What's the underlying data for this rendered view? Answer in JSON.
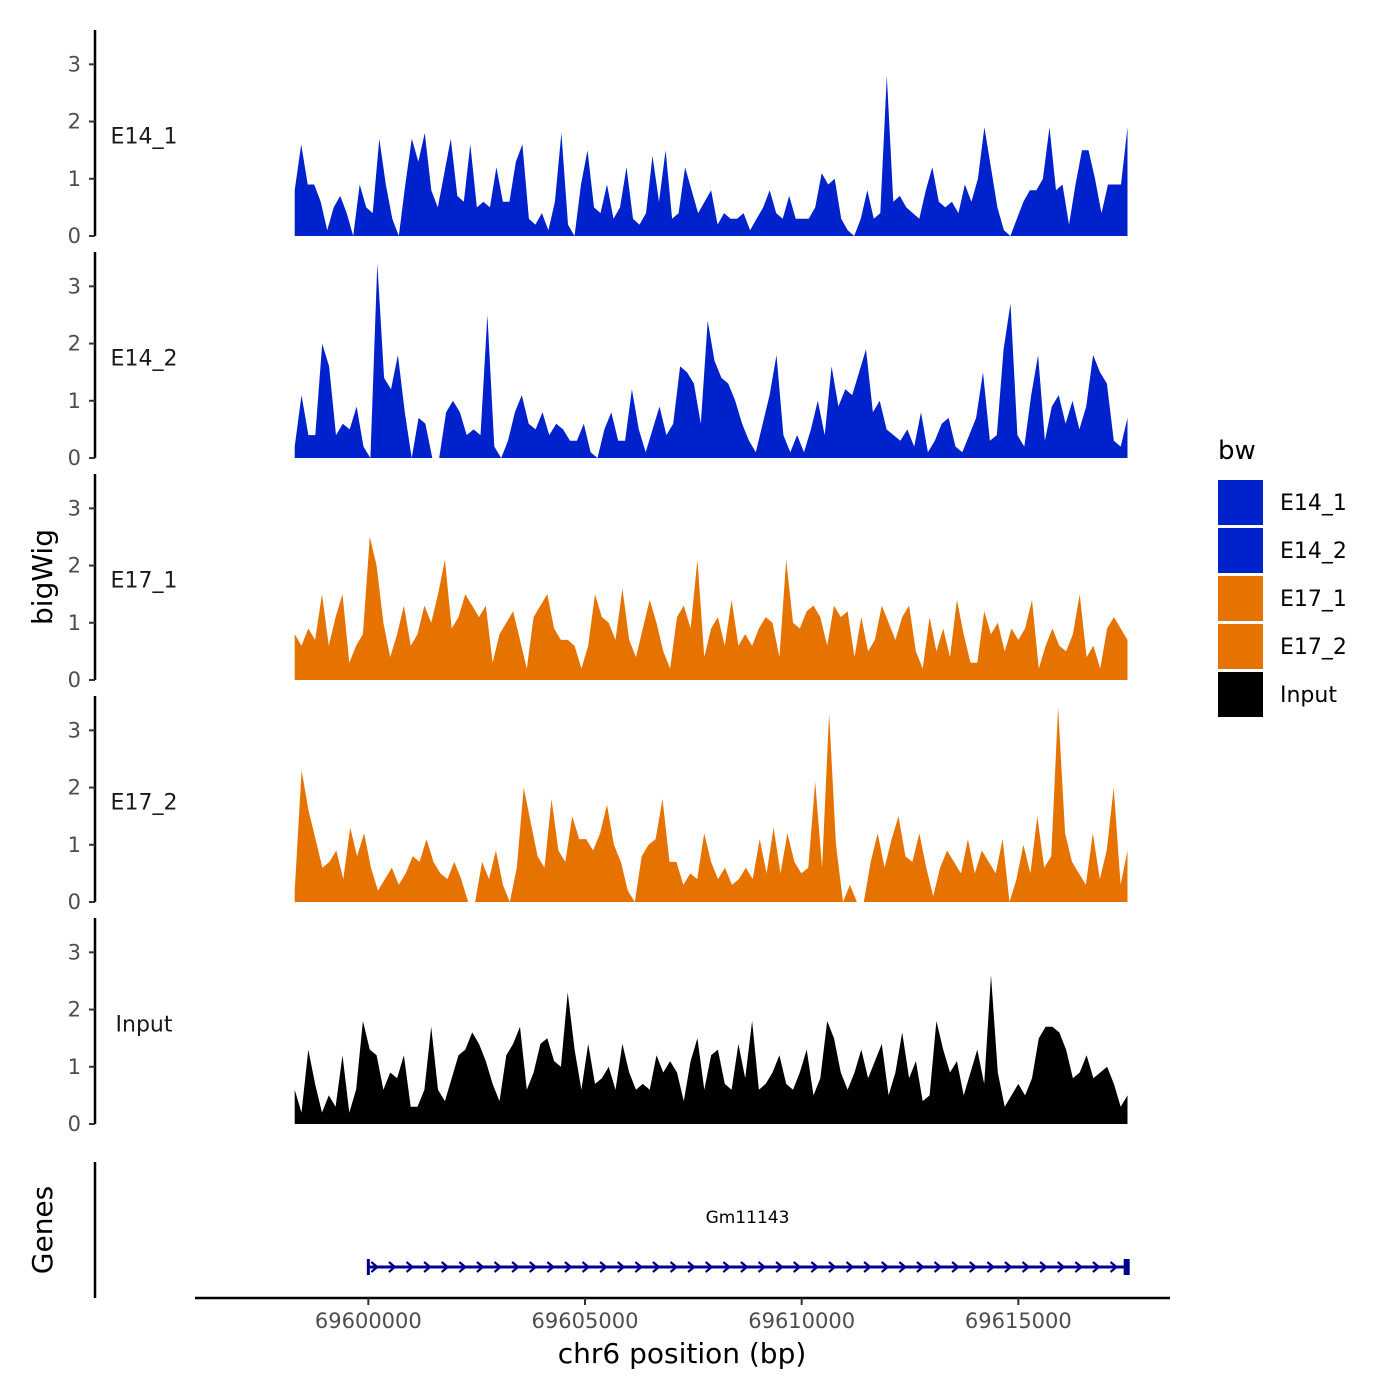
{
  "chart_data": {
    "type": "area",
    "chromosome": "chr6",
    "xlabel": "chr6 position (bp)",
    "ylabel": "bigWig",
    "genes_label": "Genes",
    "xlim": [
      69596000,
      69618500
    ],
    "x_ticks": [
      69600000,
      69605000,
      69610000,
      69615000
    ],
    "x_tick_labels": [
      "69600000",
      "69605000",
      "69610000",
      "69615000"
    ],
    "ylim": [
      0,
      3.6
    ],
    "y_ticks": [
      0,
      1,
      2,
      3
    ],
    "y_tick_labels": [
      "0",
      "1",
      "2",
      "3"
    ],
    "legend": {
      "title": "bw",
      "entries": [
        {
          "name": "E14_1",
          "color": "#0022CC"
        },
        {
          "name": "E14_2",
          "color": "#0022CC"
        },
        {
          "name": "E17_1",
          "color": "#E67300"
        },
        {
          "name": "E17_2",
          "color": "#E67300"
        },
        {
          "name": "Input",
          "color": "#000000"
        }
      ]
    },
    "series": [
      {
        "name": "E14_1",
        "color": "#0022CC",
        "x_start": 69598300,
        "x_end": 69617520,
        "step": 200,
        "values": [
          0.8,
          1.6,
          0.9,
          0.9,
          0.6,
          0.1,
          0.5,
          0.7,
          0.4,
          0,
          0.9,
          0.5,
          0.4,
          1.7,
          0.9,
          0.3,
          0,
          0.9,
          1.7,
          1.3,
          1.8,
          0.8,
          0.5,
          1.1,
          1.7,
          0.7,
          0.6,
          1.6,
          0.5,
          0.6,
          0.5,
          1.2,
          0.6,
          0.6,
          1.3,
          1.6,
          0.3,
          0.2,
          0.4,
          0.1,
          0.6,
          1.8,
          0.2,
          0,
          0.9,
          1.5,
          0.5,
          0.4,
          0.9,
          0.3,
          0.5,
          1.2,
          0.3,
          0.2,
          0.4,
          1.4,
          0.6,
          1.5,
          0.3,
          0.4,
          1.2,
          0.8,
          0.4,
          0.6,
          0.8,
          0.2,
          0.4,
          0.3,
          0.3,
          0.4,
          0.1,
          0.3,
          0.5,
          0.8,
          0.4,
          0.3,
          0.7,
          0.3,
          0.3,
          0.3,
          0.5,
          1.1,
          0.9,
          1.0,
          0.3,
          0.1,
          0,
          0.3,
          0.8,
          0.3,
          0.4,
          2.8,
          0.6,
          0.7,
          0.5,
          0.4,
          0.3,
          0.8,
          1.2,
          0.6,
          0.5,
          0.6,
          0.4,
          0.9,
          0.6,
          1.0,
          1.9,
          1.2,
          0.5,
          0.1,
          0,
          0.3,
          0.6,
          0.8,
          0.8,
          1.0,
          1.9,
          0.8,
          0.9,
          0.2,
          0.9,
          1.5,
          1.5,
          1.0,
          0.4,
          0.9,
          0.9,
          0.9,
          1.9
        ]
      },
      {
        "name": "E14_2",
        "color": "#0022CC",
        "x_start": 69598300,
        "x_end": 69617520,
        "step": 200,
        "values": [
          0.2,
          1.1,
          0.4,
          0.4,
          2.0,
          1.6,
          0.4,
          0.6,
          0.5,
          0.9,
          0.2,
          0,
          3.4,
          1.4,
          1.2,
          1.8,
          0.8,
          0,
          0.7,
          0.6,
          0,
          0,
          0.8,
          1.0,
          0.8,
          0.4,
          0.5,
          0.4,
          2.5,
          0.2,
          0,
          0.3,
          0.8,
          1.1,
          0.6,
          0.5,
          0.8,
          0.4,
          0.6,
          0.5,
          0.3,
          0.3,
          0.6,
          0.1,
          0,
          0.5,
          0.8,
          0.3,
          0.3,
          1.2,
          0.5,
          0.1,
          0.5,
          0.9,
          0.4,
          0.6,
          1.6,
          1.5,
          1.3,
          0.6,
          2.4,
          1.7,
          1.4,
          1.3,
          1.0,
          0.6,
          0.3,
          0.1,
          0.6,
          1.1,
          1.8,
          0.4,
          0.1,
          0.4,
          0.1,
          0.5,
          1.0,
          0.4,
          1.6,
          0.9,
          1.2,
          1.1,
          1.5,
          1.9,
          0.8,
          1.0,
          0.5,
          0.4,
          0.3,
          0.5,
          0.2,
          0.8,
          0.1,
          0.3,
          0.6,
          0.7,
          0.2,
          0.1,
          0.4,
          0.7,
          1.5,
          0.3,
          0.4,
          1.9,
          2.7,
          0.4,
          0.2,
          1.1,
          1.8,
          0.3,
          0.9,
          1.1,
          0.6,
          1.0,
          0.5,
          0.9,
          1.8,
          1.5,
          1.3,
          0.3,
          0.2,
          0.7
        ]
      },
      {
        "name": "E17_1",
        "color": "#E67300",
        "x_start": 69598300,
        "x_end": 69617520,
        "step": 200,
        "values": [
          0.8,
          0.6,
          0.9,
          0.7,
          1.5,
          0.6,
          1.1,
          1.5,
          0.3,
          0.6,
          0.8,
          2.5,
          2.0,
          1.0,
          0.4,
          0.8,
          1.3,
          0.6,
          0.8,
          1.3,
          1.0,
          1.5,
          2.1,
          0.9,
          1.1,
          1.5,
          1.3,
          1.1,
          1.3,
          0.3,
          0.8,
          1.0,
          1.2,
          0.7,
          0.2,
          1.1,
          1.3,
          1.5,
          0.9,
          0.7,
          0.7,
          0.6,
          0.2,
          0.6,
          1.5,
          1.1,
          1.0,
          0.7,
          1.6,
          0.7,
          0.4,
          0.9,
          1.4,
          1.0,
          0.5,
          0.2,
          1.1,
          1.3,
          0.9,
          2.1,
          0.4,
          0.9,
          1.1,
          0.6,
          1.4,
          0.6,
          0.8,
          0.6,
          0.9,
          1.1,
          1.0,
          0.4,
          2.1,
          1.0,
          0.9,
          1.2,
          1.3,
          1.1,
          0.6,
          1.3,
          1.1,
          1.2,
          0.4,
          1.1,
          0.5,
          0.7,
          1.3,
          1.0,
          0.7,
          1.1,
          1.3,
          0.5,
          0.2,
          1.1,
          0.5,
          0.9,
          0.4,
          1.4,
          0.8,
          0.3,
          0.3,
          1.2,
          0.8,
          1.0,
          0.5,
          0.9,
          0.7,
          0.9,
          1.4,
          0.2,
          0.6,
          0.9,
          0.6,
          0.5,
          0.8,
          1.5,
          0.4,
          0.6,
          0.2,
          0.9,
          1.1,
          0.9,
          0.7
        ]
      },
      {
        "name": "E17_2",
        "color": "#E67300",
        "x_start": 69598300,
        "x_end": 69617520,
        "step": 200,
        "values": [
          0.2,
          2.3,
          1.6,
          1.1,
          0.6,
          0.7,
          0.9,
          0.4,
          1.3,
          0.8,
          1.2,
          0.6,
          0.2,
          0.4,
          0.6,
          0.3,
          0.5,
          0.8,
          0.7,
          1.1,
          0.7,
          0.5,
          0.4,
          0.7,
          0.4,
          0,
          0,
          0.7,
          0.4,
          0.9,
          0.3,
          0,
          0.6,
          2.0,
          1.4,
          0.8,
          0.6,
          1.8,
          0.9,
          0.7,
          1.5,
          1.1,
          1.1,
          0.9,
          1.2,
          1.7,
          1.0,
          0.7,
          0.2,
          0,
          0.8,
          1.0,
          1.1,
          1.8,
          0.7,
          0.7,
          0.3,
          0.5,
          0.4,
          1.2,
          0.7,
          0.4,
          0.6,
          0.3,
          0.4,
          0.6,
          0.4,
          1.1,
          0.5,
          1.3,
          0.5,
          1.2,
          0.7,
          0.5,
          0.6,
          2.1,
          0.6,
          3.3,
          1.0,
          0,
          0.3,
          0,
          0,
          0.7,
          1.2,
          0.6,
          1.1,
          1.5,
          0.8,
          0.7,
          1.2,
          0.6,
          0.1,
          0.6,
          0.9,
          0.7,
          0.5,
          1.1,
          0.5,
          0.9,
          0.7,
          0.5,
          1.1,
          0,
          0.4,
          1.0,
          0.5,
          1.5,
          0.6,
          0.8,
          3.4,
          1.2,
          0.7,
          0.5,
          0.3,
          1.2,
          0.4,
          0.9,
          2.0,
          0.3,
          0.9
        ]
      },
      {
        "name": "Input",
        "color": "#000000",
        "x_start": 69598300,
        "x_end": 69617520,
        "step": 200,
        "values": [
          0.6,
          0.2,
          1.3,
          0.7,
          0.2,
          0.5,
          0.3,
          1.2,
          0.2,
          0.6,
          1.8,
          1.3,
          1.2,
          0.6,
          0.9,
          0.8,
          1.2,
          0.3,
          0.3,
          0.6,
          1.7,
          0.6,
          0.4,
          0.8,
          1.2,
          1.3,
          1.6,
          1.4,
          1.1,
          0.7,
          0.4,
          1.2,
          1.4,
          1.7,
          0.6,
          0.9,
          1.4,
          1.5,
          1.1,
          1.0,
          2.3,
          1.3,
          0.6,
          1.4,
          0.7,
          0.8,
          1.0,
          0.6,
          1.4,
          0.9,
          0.6,
          0.7,
          0.6,
          1.2,
          0.9,
          1.1,
          0.9,
          0.4,
          1.1,
          1.5,
          0.6,
          1.2,
          1.3,
          0.7,
          0.6,
          1.4,
          0.8,
          1.8,
          0.6,
          0.7,
          0.9,
          1.2,
          0.7,
          0.6,
          0.9,
          1.3,
          0.5,
          0.8,
          1.8,
          1.5,
          0.9,
          0.6,
          0.9,
          1.3,
          0.8,
          1.1,
          1.4,
          0.5,
          0.9,
          1.6,
          0.8,
          1.1,
          0.4,
          0.5,
          1.8,
          1.3,
          0.9,
          1.1,
          0.5,
          0.9,
          1.3,
          0.7,
          2.6,
          0.9,
          0.3,
          0.5,
          0.7,
          0.5,
          0.8,
          1.5,
          1.7,
          1.7,
          1.6,
          1.3,
          0.8,
          0.9,
          1.2,
          0.8,
          0.9,
          1.0,
          0.7,
          0.3,
          0.5
        ]
      }
    ],
    "genes": [
      {
        "name": "Gm11143",
        "start": 69600000,
        "end": 69617500,
        "strand": "+",
        "color": "#00008B"
      }
    ]
  }
}
